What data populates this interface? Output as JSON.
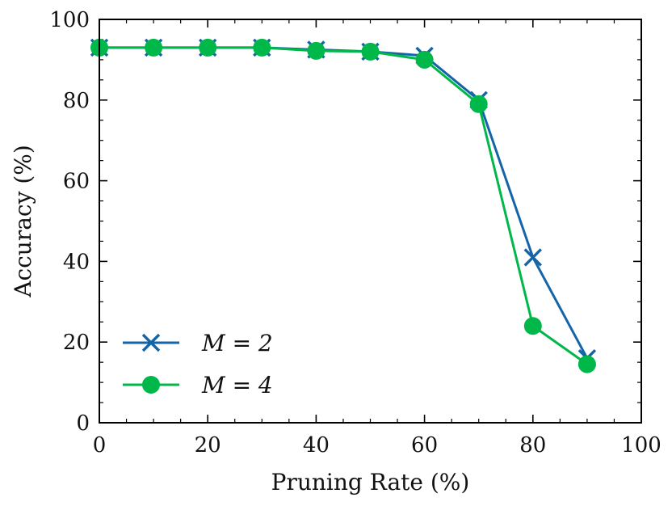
{
  "chart_data": {
    "type": "line",
    "title": "",
    "xlabel": "Pruning Rate (%)",
    "ylabel": "Accuracy (%)",
    "xlim": [
      0,
      100
    ],
    "ylim": [
      0,
      100
    ],
    "xticks": [
      "0",
      "20",
      "40",
      "60",
      "80",
      "100"
    ],
    "yticks": [
      "0",
      "20",
      "40",
      "60",
      "80",
      "100"
    ],
    "grid": false,
    "legend_position": "lower-left",
    "x": [
      0,
      10,
      20,
      30,
      40,
      50,
      60,
      70,
      80,
      90
    ],
    "series": [
      {
        "name": "M = 2",
        "marker": "x",
        "color": "#1464a8",
        "values": [
          93,
          93,
          93,
          93,
          92.5,
          92,
          91,
          80,
          41,
          16
        ]
      },
      {
        "name": "M = 4",
        "marker": "circle",
        "color": "#00b74a",
        "values": [
          93,
          93,
          93,
          93,
          92.2,
          92,
          90,
          79,
          24,
          14.5
        ]
      }
    ]
  }
}
